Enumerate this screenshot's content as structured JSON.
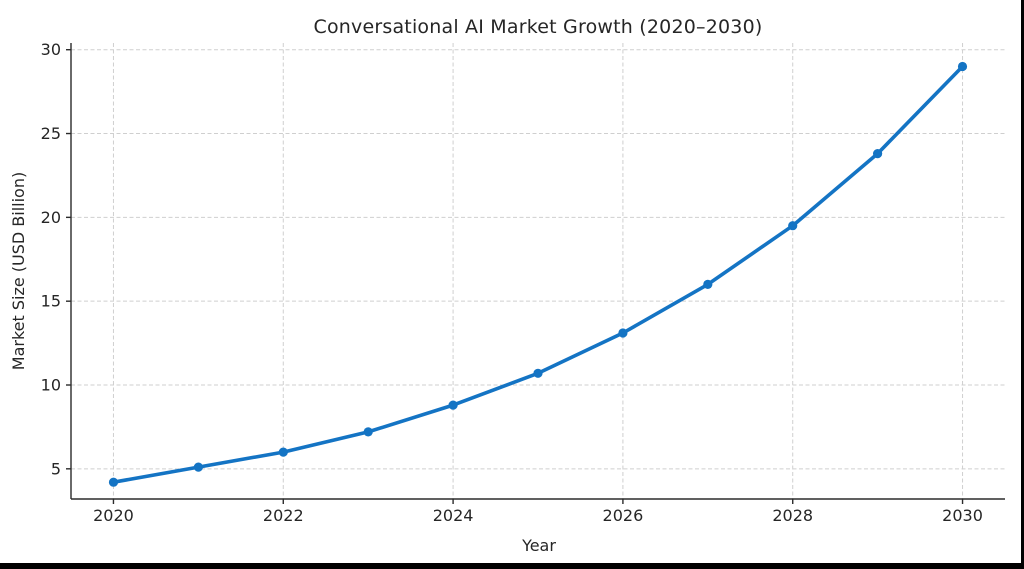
{
  "window": {
    "background": "#ffffff",
    "frame_color": "#000000"
  },
  "chart_data": {
    "type": "line",
    "title": "Conversational AI Market Growth (2020–2030)",
    "xlabel": "Year",
    "ylabel": "Market Size (USD Billion)",
    "x": [
      2020,
      2021,
      2022,
      2023,
      2024,
      2025,
      2026,
      2027,
      2028,
      2029,
      2030
    ],
    "values": [
      4.2,
      5.1,
      6.0,
      7.2,
      8.8,
      10.7,
      13.1,
      16.0,
      19.5,
      23.8,
      29.0
    ],
    "xticks": [
      2020,
      2022,
      2024,
      2026,
      2028,
      2030
    ],
    "yticks": [
      5,
      10,
      15,
      20,
      25,
      30
    ],
    "xlim": [
      2019.5,
      2030.5
    ],
    "ylim": [
      3.2,
      30.4
    ],
    "grid": true,
    "grid_style": "dashed",
    "legend": "none",
    "line_color": "#1474c4",
    "marker": "circle",
    "grid_color": "#cfcfcf",
    "spine_color": "#2b2b2b",
    "text_color": "#262626"
  }
}
